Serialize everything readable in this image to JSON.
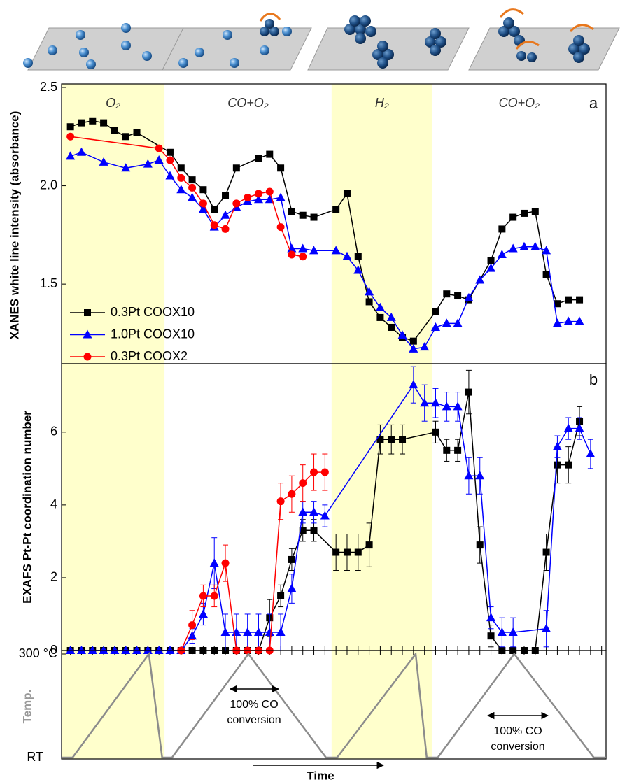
{
  "chart_data": [
    {
      "type": "line",
      "panel_label": "a",
      "ylabel": "XANES white line intensity (absorbance)",
      "xlim": [
        -0.8,
        48.4
      ],
      "ylim": [
        1.095,
        2.5
      ],
      "yticks": [
        1.5,
        {
          "value": 2,
          "label": "2.0"
        },
        2.5
      ],
      "legend": "lower left",
      "phases": [
        {
          "label": "O₂",
          "start": -0.8,
          "end": 8.5,
          "shaded": true,
          "color": "#ffffcc"
        },
        {
          "label": "CO+O₂",
          "start": 8.5,
          "end": 23.6,
          "shaded": false
        },
        {
          "label": "H₂",
          "start": 23.6,
          "end": 32.7,
          "shaded": true,
          "color": "#ffffcc"
        },
        {
          "label": "CO+O₂",
          "start": 32.7,
          "end": 48.4,
          "shaded": false
        }
      ],
      "series": [
        {
          "name": "0.3Pt COOX10",
          "color": "#000000",
          "marker": "square",
          "x": [
            0,
            1,
            2,
            3,
            4,
            5,
            6,
            9,
            10,
            11,
            12,
            13,
            14,
            15,
            17,
            18,
            19,
            20,
            21,
            22,
            24,
            25,
            26,
            27,
            28,
            29,
            30,
            31,
            33,
            34,
            35,
            36,
            38,
            39,
            40,
            41,
            42,
            43,
            44,
            45,
            46
          ],
          "values": [
            2.3,
            2.32,
            2.33,
            2.32,
            2.28,
            2.25,
            2.27,
            2.17,
            2.09,
            2.03,
            1.98,
            1.88,
            1.95,
            2.09,
            2.14,
            2.16,
            2.09,
            1.87,
            1.85,
            1.84,
            1.88,
            1.96,
            1.64,
            1.41,
            1.33,
            1.28,
            1.23,
            1.21,
            1.36,
            1.45,
            1.44,
            1.42,
            1.62,
            1.78,
            1.84,
            1.86,
            1.87,
            1.55,
            1.4,
            1.42,
            1.42
          ]
        },
        {
          "name": "1.0Pt COOX10",
          "color": "#0000ff",
          "marker": "triangle",
          "x": [
            0,
            1,
            3,
            5,
            7,
            8,
            9,
            10,
            11,
            12,
            13,
            14,
            15,
            16,
            17,
            18,
            19,
            20,
            21,
            22,
            24,
            25,
            26,
            27,
            28,
            29,
            30,
            31,
            32,
            33,
            34,
            35,
            36,
            37,
            38,
            39,
            40,
            41,
            42,
            43,
            44,
            45,
            46
          ],
          "values": [
            2.15,
            2.17,
            2.12,
            2.09,
            2.11,
            2.13,
            2.05,
            1.98,
            1.94,
            1.88,
            1.79,
            1.85,
            1.89,
            1.92,
            1.93,
            1.93,
            1.94,
            1.68,
            1.68,
            1.67,
            1.67,
            1.64,
            1.57,
            1.46,
            1.38,
            1.33,
            1.24,
            1.17,
            1.18,
            1.28,
            1.3,
            1.3,
            1.43,
            1.52,
            1.58,
            1.65,
            1.68,
            1.69,
            1.69,
            1.67,
            1.3,
            1.31,
            1.31
          ]
        },
        {
          "name": "0.3Pt COOX2",
          "color": "#ff0000",
          "marker": "circle",
          "x": [
            0,
            8,
            9,
            10,
            11,
            12,
            13,
            14,
            15,
            16,
            17,
            18,
            19,
            20,
            21
          ],
          "values": [
            2.25,
            2.19,
            2.13,
            2.04,
            1.99,
            1.91,
            1.8,
            1.78,
            1.91,
            1.94,
            1.96,
            1.97,
            1.79,
            1.65,
            1.64
          ]
        }
      ]
    },
    {
      "type": "errorbar",
      "panel_label": "b",
      "ylabel": "EXAFS Pt-Pt coordination number",
      "xlim": [
        -0.8,
        48.4
      ],
      "ylim": [
        0,
        7.88
      ],
      "yticks": [
        0,
        2,
        4,
        6
      ],
      "xticks": [
        0,
        1,
        2,
        3,
        4,
        5,
        6,
        7,
        8,
        9,
        10,
        11,
        12,
        13,
        14,
        15,
        16,
        17,
        18,
        19,
        20,
        21,
        22,
        23,
        24,
        25,
        26,
        27,
        28,
        29,
        30,
        31,
        32,
        33,
        34,
        35,
        36,
        37,
        38,
        39,
        40,
        41,
        42,
        43,
        44,
        45,
        46,
        47,
        48
      ],
      "series": [
        {
          "name": "0.3Pt COOX10",
          "color": "#000000",
          "marker": "square",
          "x": [
            0,
            1,
            2,
            3,
            4,
            5,
            6,
            7,
            8,
            9,
            10,
            11,
            12,
            13,
            14,
            15,
            16,
            17,
            18,
            19,
            20,
            21,
            22,
            24,
            25,
            26,
            27,
            28,
            29,
            30,
            33,
            34,
            35,
            36,
            37,
            38,
            39,
            40,
            41,
            42,
            43,
            44,
            45,
            46
          ],
          "values": [
            0,
            0,
            0,
            0,
            0,
            0,
            0,
            0,
            0,
            0,
            0,
            0,
            0,
            0,
            0,
            0,
            0,
            0,
            0.9,
            1.5,
            2.5,
            3.3,
            3.3,
            2.7,
            2.7,
            2.7,
            2.9,
            5.8,
            5.8,
            5.8,
            6.0,
            5.5,
            5.5,
            7.1,
            2.9,
            0.4,
            0,
            0,
            0,
            0,
            2.7,
            5.1,
            5.1,
            6.3
          ],
          "errors": [
            null,
            null,
            null,
            null,
            null,
            null,
            null,
            null,
            null,
            null,
            null,
            null,
            null,
            null,
            null,
            null,
            null,
            null,
            0.5,
            0.3,
            0.3,
            0.3,
            0.3,
            0.5,
            0.5,
            0.5,
            0.6,
            0.4,
            0.4,
            0.4,
            0.3,
            0.3,
            0.3,
            0.6,
            0.5,
            0.3,
            null,
            null,
            null,
            null,
            0.5,
            0.5,
            0.5,
            0.4
          ]
        },
        {
          "name": "1.0Pt COOX10",
          "color": "#0000ff",
          "marker": "triangle",
          "x": [
            0,
            1,
            2,
            3,
            4,
            5,
            6,
            7,
            8,
            9,
            10,
            11,
            12,
            13,
            14,
            15,
            16,
            17,
            18,
            19,
            20,
            21,
            22,
            23,
            31,
            32,
            33,
            34,
            35,
            36,
            37,
            38,
            39,
            40,
            43,
            44,
            45,
            46,
            47
          ],
          "values": [
            0,
            0,
            0,
            0,
            0,
            0,
            0,
            0,
            0,
            0,
            0,
            0.4,
            1.0,
            2.4,
            0.5,
            0.5,
            0.5,
            0.5,
            0.5,
            0.5,
            1.7,
            3.8,
            3.8,
            3.7,
            7.3,
            6.8,
            6.8,
            6.7,
            6.7,
            4.8,
            4.8,
            0.9,
            0.5,
            0.5,
            0.6,
            5.6,
            6.1,
            6.1,
            5.4
          ],
          "errors": [
            null,
            null,
            null,
            null,
            null,
            null,
            null,
            null,
            null,
            null,
            null,
            0.2,
            0.3,
            0.7,
            0.5,
            0.5,
            0.5,
            0.5,
            0.5,
            0.5,
            0.4,
            0.3,
            0.3,
            0.3,
            0.5,
            0.5,
            0.4,
            0.4,
            0.4,
            0.5,
            0.5,
            0.3,
            0.4,
            0.4,
            0.5,
            0.3,
            0.3,
            0.3,
            0.4
          ]
        },
        {
          "name": "0.3Pt COOX2",
          "color": "#ff0000",
          "marker": "circle",
          "x": [
            10,
            11,
            12,
            13,
            14,
            15,
            16,
            17,
            18,
            19,
            20,
            21,
            22,
            23
          ],
          "values": [
            0,
            0.7,
            1.5,
            1.5,
            2.4,
            0,
            0,
            0,
            0,
            4.1,
            4.3,
            4.6,
            4.9,
            4.9
          ],
          "errors": [
            null,
            0.4,
            0.3,
            0.3,
            0.5,
            null,
            null,
            null,
            null,
            0.5,
            0.5,
            0.5,
            0.5,
            0.5
          ]
        }
      ]
    },
    {
      "type": "line",
      "ylabel": "Temp.",
      "xlabel": "Time",
      "xlim": [
        -0.8,
        48.4
      ],
      "ylim": [
        25,
        300
      ],
      "yticks": [
        {
          "value": 25,
          "label": "RT"
        },
        {
          "value": 300,
          "label": "300 °C"
        }
      ],
      "annotations": [
        [
          "100% CO",
          "conversion"
        ],
        [
          "100% CO",
          "conversion"
        ]
      ],
      "series": [
        {
          "color": "#8c8c8c",
          "x": [
            -0.8,
            0.19,
            7.09,
            8.29,
            9.18,
            16.08,
            23.1,
            24.1,
            31.2,
            32.2,
            33.2,
            40.1,
            47.3,
            48.4
          ],
          "values": [
            25,
            25,
            300,
            25,
            25,
            300,
            25,
            25,
            300,
            25,
            25,
            300,
            25,
            25
          ]
        }
      ]
    }
  ]
}
